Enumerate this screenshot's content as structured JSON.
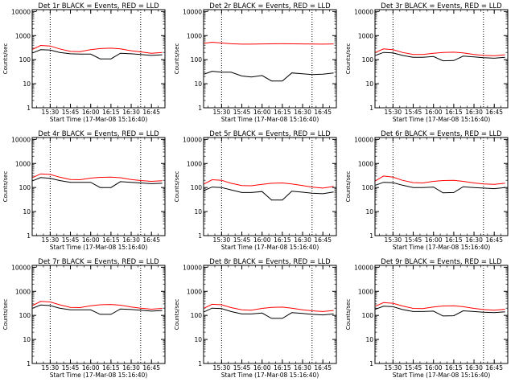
{
  "figure": {
    "panel_titles": [
      "Det 1r BLACK = Events, RED = LLD",
      "Det 2r BLACK = Events, RED = LLD",
      "Det 3r BLACK = Events, RED = LLD",
      "Det 4r BLACK = Events, RED = LLD",
      "Det 5r BLACK = Events, RED = LLD",
      "Det 6r BLACK = Events, RED = LLD",
      "Det 7r BLACK = Events, RED = LLD",
      "Det 8r BLACK = Events, RED = LLD",
      "Det 9r BLACK = Events, RED = LLD"
    ],
    "colors": {
      "events": "#000000",
      "lld": "#ff0000",
      "axes": "#000000"
    }
  },
  "chart_data": [
    {
      "type": "line",
      "title": "Det 1r BLACK = Events, RED = LLD",
      "xlabel": "Start Time (17-Mar-08 15:16:40)",
      "ylabel": "Counts/sec",
      "yscale": "log",
      "ylim": [
        1,
        12000
      ],
      "xlim": [
        "15:16:40",
        "16:55:00"
      ],
      "x_tick_labels": [
        "15:30",
        "15:45",
        "16:00",
        "16:15",
        "16:30",
        "16:45"
      ],
      "y_tick_labels": [
        "1",
        "10",
        "100",
        "1000",
        "10000"
      ],
      "vertical_dotted_lines_at": [
        "15:30",
        "16:37"
      ],
      "x": [
        "15:17",
        "15:23",
        "15:30",
        "15:37",
        "15:45",
        "15:52",
        "16:00",
        "16:07",
        "16:15",
        "16:22",
        "16:30",
        "16:37",
        "16:45",
        "16:53"
      ],
      "series": [
        {
          "name": "BLACK = Events",
          "color": "#000000",
          "values": [
            190,
            260,
            250,
            200,
            175,
            170,
            170,
            108,
            108,
            185,
            175,
            165,
            150,
            160
          ]
        },
        {
          "name": "RED = LLD",
          "color": "#ff0000",
          "values": [
            270,
            390,
            370,
            280,
            220,
            215,
            260,
            290,
            300,
            280,
            235,
            210,
            185,
            200
          ]
        }
      ]
    },
    {
      "type": "line",
      "title": "Det 2r BLACK = Events, RED = LLD",
      "xlabel": "Start Time (17-Mar-08 15:16:40)",
      "ylabel": "Counts/sec",
      "yscale": "log",
      "ylim": [
        1,
        12000
      ],
      "xlim": [
        "15:16:40",
        "16:55:00"
      ],
      "x_tick_labels": [
        "15:30",
        "15:45",
        "16:00",
        "16:15",
        "16:30",
        "16:45"
      ],
      "y_tick_labels": [
        "1",
        "10",
        "100",
        "1000",
        "10000"
      ],
      "vertical_dotted_lines_at": [
        "15:30",
        "16:37"
      ],
      "x": [
        "15:17",
        "15:23",
        "15:30",
        "15:37",
        "15:45",
        "15:52",
        "16:00",
        "16:07",
        "16:15",
        "16:22",
        "16:30",
        "16:37",
        "16:45",
        "16:53"
      ],
      "series": [
        {
          "name": "BLACK = Events",
          "color": "#000000",
          "values": [
            25,
            33,
            30,
            30,
            21,
            19,
            22,
            13,
            13,
            28,
            26,
            24,
            25,
            28
          ]
        },
        {
          "name": "RED = LLD",
          "color": "#ff0000",
          "values": [
            480,
            530,
            490,
            460,
            440,
            440,
            450,
            455,
            460,
            455,
            450,
            445,
            440,
            450
          ]
        }
      ]
    },
    {
      "type": "line",
      "title": "Det 3r BLACK = Events, RED = LLD",
      "xlabel": "Start Time (17-Mar-08 15:16:40)",
      "ylabel": "Counts/sec",
      "yscale": "log",
      "ylim": [
        1,
        12000
      ],
      "xlim": [
        "15:16:40",
        "16:55:00"
      ],
      "x_tick_labels": [
        "15:30",
        "15:45",
        "16:00",
        "16:15",
        "16:30",
        "16:45"
      ],
      "y_tick_labels": [
        "1",
        "10",
        "100",
        "1000",
        "10000"
      ],
      "vertical_dotted_lines_at": [
        "15:30",
        "16:37"
      ],
      "x": [
        "15:17",
        "15:23",
        "15:30",
        "15:37",
        "15:45",
        "15:52",
        "16:00",
        "16:07",
        "16:15",
        "16:22",
        "16:30",
        "16:37",
        "16:45",
        "16:53"
      ],
      "series": [
        {
          "name": "BLACK = Events",
          "color": "#000000",
          "values": [
            150,
            200,
            190,
            150,
            125,
            125,
            135,
            90,
            92,
            140,
            130,
            120,
            115,
            125
          ]
        },
        {
          "name": "RED = LLD",
          "color": "#ff0000",
          "values": [
            200,
            280,
            260,
            200,
            165,
            165,
            185,
            200,
            205,
            190,
            165,
            150,
            145,
            160
          ]
        }
      ]
    },
    {
      "type": "line",
      "title": "Det 4r BLACK = Events, RED = LLD",
      "xlabel": "Start Time (17-Mar-08 15:16:40)",
      "ylabel": "Counts/sec",
      "yscale": "log",
      "ylim": [
        1,
        12000
      ],
      "xlim": [
        "15:16:40",
        "16:55:00"
      ],
      "x_tick_labels": [
        "15:30",
        "15:45",
        "16:00",
        "16:15",
        "16:30",
        "16:45"
      ],
      "y_tick_labels": [
        "1",
        "10",
        "100",
        "1000",
        "10000"
      ],
      "vertical_dotted_lines_at": [
        "15:30",
        "16:37"
      ],
      "x": [
        "15:17",
        "15:23",
        "15:30",
        "15:37",
        "15:45",
        "15:52",
        "16:00",
        "16:07",
        "16:15",
        "16:22",
        "16:30",
        "16:37",
        "16:45",
        "16:53"
      ],
      "series": [
        {
          "name": "BLACK = Events",
          "color": "#000000",
          "values": [
            190,
            260,
            240,
            195,
            165,
            165,
            165,
            100,
            100,
            175,
            165,
            155,
            145,
            150
          ]
        },
        {
          "name": "RED = LLD",
          "color": "#ff0000",
          "values": [
            260,
            370,
            350,
            270,
            215,
            210,
            245,
            265,
            270,
            255,
            215,
            195,
            180,
            190
          ]
        }
      ]
    },
    {
      "type": "line",
      "title": "Det 5r BLACK = Events, RED = LLD",
      "xlabel": "Start Time (17-Mar-08 15:16:40)",
      "ylabel": "Counts/sec",
      "yscale": "log",
      "ylim": [
        1,
        12000
      ],
      "xlim": [
        "15:16:40",
        "16:55:00"
      ],
      "x_tick_labels": [
        "15:30",
        "15:45",
        "16:00",
        "16:15",
        "16:30",
        "16:45"
      ],
      "y_tick_labels": [
        "1",
        "10",
        "100",
        "1000",
        "10000"
      ],
      "vertical_dotted_lines_at": [
        "15:30",
        "16:37"
      ],
      "x": [
        "15:17",
        "15:23",
        "15:30",
        "15:37",
        "15:45",
        "15:52",
        "16:00",
        "16:07",
        "16:15",
        "16:22",
        "16:30",
        "16:37",
        "16:45",
        "16:53"
      ],
      "series": [
        {
          "name": "BLACK = Events",
          "color": "#000000",
          "values": [
            75,
            105,
            100,
            80,
            62,
            62,
            68,
            30,
            30,
            70,
            64,
            58,
            55,
            65
          ]
        },
        {
          "name": "RED = LLD",
          "color": "#ff0000",
          "values": [
            140,
            210,
            200,
            150,
            120,
            118,
            135,
            150,
            155,
            140,
            120,
            105,
            95,
            110
          ]
        }
      ]
    },
    {
      "type": "line",
      "title": "Det 6r BLACK = Events, RED = LLD",
      "xlabel": "Start Time (17-Mar-08 15:16:40)",
      "ylabel": "Counts/sec",
      "yscale": "log",
      "ylim": [
        1,
        12000
      ],
      "xlim": [
        "15:16:40",
        "16:55:00"
      ],
      "x_tick_labels": [
        "15:30",
        "15:45",
        "16:00",
        "16:15",
        "16:30",
        "16:45"
      ],
      "y_tick_labels": [
        "1",
        "10",
        "100",
        "1000",
        "10000"
      ],
      "vertical_dotted_lines_at": [
        "15:30",
        "16:37"
      ],
      "x": [
        "15:17",
        "15:23",
        "15:30",
        "15:37",
        "15:45",
        "15:52",
        "16:00",
        "16:07",
        "16:15",
        "16:22",
        "16:30",
        "16:37",
        "16:45",
        "16:53"
      ],
      "series": [
        {
          "name": "BLACK = Events",
          "color": "#000000",
          "values": [
            125,
            165,
            160,
            125,
            100,
            100,
            105,
            60,
            62,
            108,
            100,
            95,
            90,
            100
          ]
        },
        {
          "name": "RED = LLD",
          "color": "#ff0000",
          "values": [
            190,
            300,
            270,
            200,
            160,
            155,
            180,
            195,
            200,
            180,
            155,
            140,
            135,
            150
          ]
        }
      ]
    },
    {
      "type": "line",
      "title": "Det 7r BLACK = Events, RED = LLD",
      "xlabel": "Start Time (17-Mar-08 15:16:40)",
      "ylabel": "Counts/sec",
      "yscale": "log",
      "ylim": [
        1,
        12000
      ],
      "xlim": [
        "15:16:40",
        "16:55:00"
      ],
      "x_tick_labels": [
        "15:30",
        "15:45",
        "16:00",
        "16:15",
        "16:30",
        "16:45"
      ],
      "y_tick_labels": [
        "1",
        "10",
        "100",
        "1000",
        "10000"
      ],
      "vertical_dotted_lines_at": [
        "15:30",
        "16:37"
      ],
      "x": [
        "15:17",
        "15:23",
        "15:30",
        "15:37",
        "15:45",
        "15:52",
        "16:00",
        "16:07",
        "16:15",
        "16:22",
        "16:30",
        "16:37",
        "16:45",
        "16:53"
      ],
      "series": [
        {
          "name": "BLACK = Events",
          "color": "#000000",
          "values": [
            200,
            270,
            255,
            200,
            170,
            170,
            170,
            110,
            110,
            185,
            175,
            165,
            150,
            160
          ]
        },
        {
          "name": "RED = LLD",
          "color": "#ff0000",
          "values": [
            260,
            380,
            360,
            275,
            215,
            210,
            250,
            275,
            285,
            265,
            225,
            200,
            180,
            195
          ]
        }
      ]
    },
    {
      "type": "line",
      "title": "Det 8r BLACK = Events, RED = LLD",
      "xlabel": "Start Time (17-Mar-08 15:16:40)",
      "ylabel": "Counts/sec",
      "yscale": "log",
      "ylim": [
        1,
        12000
      ],
      "xlim": [
        "15:16:40",
        "16:55:00"
      ],
      "x_tick_labels": [
        "15:30",
        "15:45",
        "16:00",
        "16:15",
        "16:30",
        "16:45"
      ],
      "y_tick_labels": [
        "1",
        "10",
        "100",
        "1000",
        "10000"
      ],
      "vertical_dotted_lines_at": [
        "15:30",
        "16:37"
      ],
      "x": [
        "15:17",
        "15:23",
        "15:30",
        "15:37",
        "15:45",
        "15:52",
        "16:00",
        "16:07",
        "16:15",
        "16:22",
        "16:30",
        "16:37",
        "16:45",
        "16:53"
      ],
      "series": [
        {
          "name": "BLACK = Events",
          "color": "#000000",
          "values": [
            140,
            200,
            190,
            145,
            115,
            115,
            125,
            75,
            75,
            130,
            120,
            110,
            105,
            115
          ]
        },
        {
          "name": "RED = LLD",
          "color": "#ff0000",
          "values": [
            200,
            290,
            275,
            210,
            170,
            165,
            195,
            215,
            220,
            200,
            170,
            155,
            145,
            160
          ]
        }
      ]
    },
    {
      "type": "line",
      "title": "Det 9r BLACK = Events, RED = LLD",
      "xlabel": "Start Time (17-Mar-08 15:16:40)",
      "ylabel": "Counts/sec",
      "yscale": "log",
      "ylim": [
        1,
        12000
      ],
      "xlim": [
        "15:16:40",
        "16:55:00"
      ],
      "x_tick_labels": [
        "15:30",
        "15:45",
        "16:00",
        "16:15",
        "16:30",
        "16:45"
      ],
      "y_tick_labels": [
        "1",
        "10",
        "100",
        "1000",
        "10000"
      ],
      "vertical_dotted_lines_at": [
        "15:30",
        "16:37"
      ],
      "x": [
        "15:17",
        "15:23",
        "15:30",
        "15:37",
        "15:45",
        "15:52",
        "16:00",
        "16:07",
        "16:15",
        "16:22",
        "16:30",
        "16:37",
        "16:45",
        "16:53"
      ],
      "series": [
        {
          "name": "BLACK = Events",
          "color": "#000000",
          "values": [
            180,
            240,
            230,
            175,
            145,
            145,
            150,
            95,
            97,
            155,
            145,
            135,
            130,
            140
          ]
        },
        {
          "name": "RED = LLD",
          "color": "#ff0000",
          "values": [
            240,
            340,
            320,
            245,
            195,
            190,
            225,
            245,
            250,
            230,
            195,
            175,
            165,
            180
          ]
        }
      ]
    }
  ]
}
